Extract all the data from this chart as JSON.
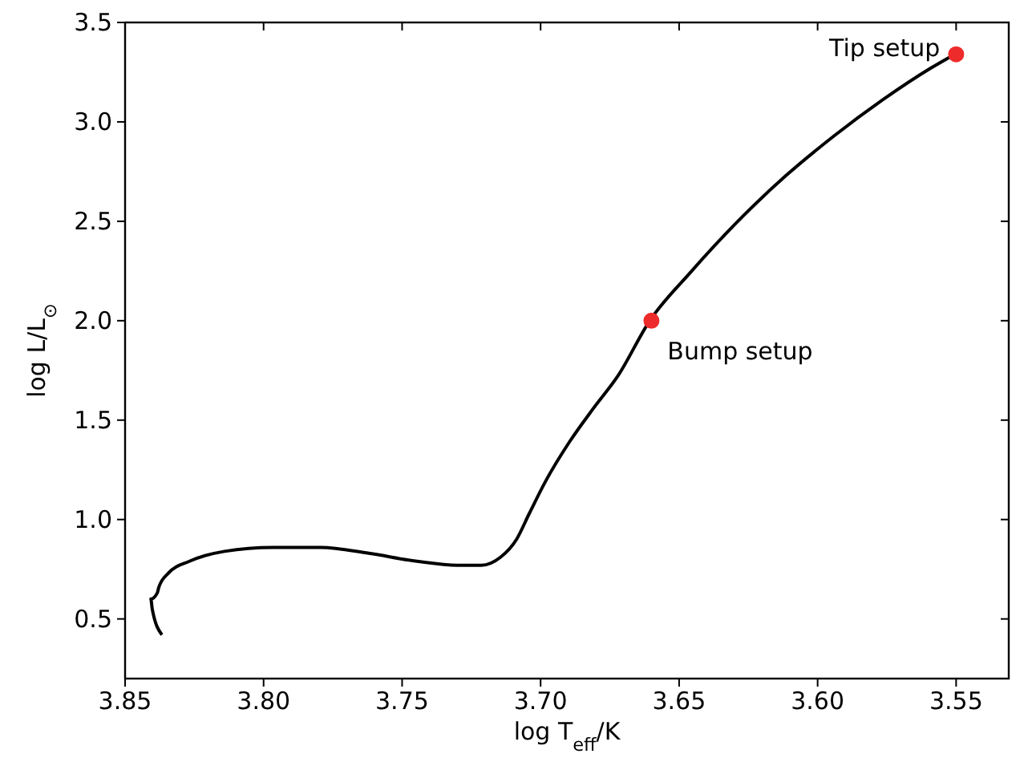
{
  "chart_data": {
    "type": "line",
    "xlabel": "log T$_{eff}$/K",
    "ylabel": "log L/L$_{⊙}$",
    "xlim": [
      3.85,
      3.531
    ],
    "ylim": [
      0.2,
      3.5
    ],
    "xticks": [
      {
        "value": 3.85,
        "label": "3.85"
      },
      {
        "value": 3.8,
        "label": "3.80"
      },
      {
        "value": 3.75,
        "label": "3.75"
      },
      {
        "value": 3.7,
        "label": "3.70"
      },
      {
        "value": 3.65,
        "label": "3.65"
      },
      {
        "value": 3.6,
        "label": "3.60"
      },
      {
        "value": 3.55,
        "label": "3.55"
      }
    ],
    "yticks": [
      {
        "value": 0.5,
        "label": "0.5"
      },
      {
        "value": 1,
        "label": "1.0"
      },
      {
        "value": 1.5,
        "label": "1.5"
      },
      {
        "value": 2,
        "label": "2.0"
      },
      {
        "value": 2.5,
        "label": "2.5"
      },
      {
        "value": 3,
        "label": "3.0"
      },
      {
        "value": 3.5,
        "label": "3.5"
      }
    ],
    "grid": false,
    "series": [
      {
        "color": "#000000",
        "x": [
          3.8367,
          3.8402,
          3.8407,
          3.8384,
          3.8378,
          3.8344,
          3.8268,
          3.8141,
          3.7967,
          3.7793,
          3.762,
          3.7446,
          3.7301,
          3.7214,
          3.7145,
          3.7087,
          3.7041,
          3.6983,
          3.6896,
          3.6809,
          3.6722,
          3.6606,
          3.6461,
          3.6288,
          3.6114,
          3.594,
          3.5766,
          3.5592,
          3.5505
        ],
        "values": [
          0.42,
          0.55,
          0.6,
          0.63,
          0.66,
          0.73,
          0.79,
          0.84,
          0.86,
          0.86,
          0.83,
          0.79,
          0.77,
          0.77,
          0.81,
          0.9,
          1.03,
          1.19,
          1.39,
          1.56,
          1.72,
          2.0,
          2.24,
          2.5,
          2.73,
          2.93,
          3.11,
          3.27,
          3.34
        ]
      },
      {
        "type": "scatter",
        "color": "#ee2b2b",
        "marker": "circle",
        "x": [
          3.66,
          3.55
        ],
        "values": [
          2.0,
          3.34
        ]
      }
    ],
    "annotations": [
      {
        "text": "Bump setup",
        "x": 3.66,
        "y": 2.0
      },
      {
        "text": "Tip setup",
        "x": 3.55,
        "y": 3.34
      }
    ]
  }
}
